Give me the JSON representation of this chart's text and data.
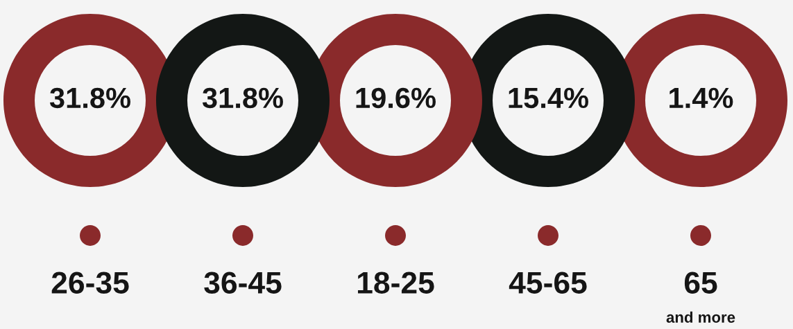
{
  "chart_data": {
    "type": "other",
    "categories": [
      "26-35",
      "36-45",
      "18-25",
      "45-65",
      "65\nand more"
    ],
    "values": [
      31.8,
      31.8,
      19.6,
      15.4,
      1.4
    ],
    "value_labels": [
      "31.8%",
      "31.8%",
      "19.6%",
      "15.4%",
      "1.4%"
    ],
    "colors": [
      "#8a2a2b",
      "#131715",
      "#8a2a2b",
      "#131715",
      "#8a2a2b"
    ]
  }
}
